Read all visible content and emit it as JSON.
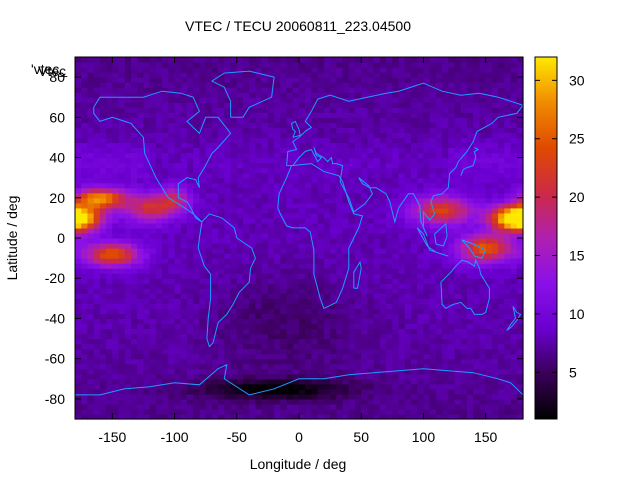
{
  "chart_data": {
    "type": "heatmap",
    "title": "VTEC / TECU 20060811_223.04500",
    "xlabel": "Longitude / deg",
    "ylabel": "Latitude / deg",
    "key_label": "'vtec_",
    "key_overlay_label": "Vtec",
    "xlim": [
      -180,
      180
    ],
    "ylim": [
      -90,
      90
    ],
    "clim": [
      1,
      32
    ],
    "x_ticks": [
      -150,
      -100,
      -50,
      0,
      50,
      100,
      150
    ],
    "y_ticks": [
      -80,
      -60,
      -40,
      -20,
      0,
      20,
      40,
      60,
      80
    ],
    "y_tick_labels": [
      "-80",
      "-60",
      "-40",
      "-20",
      "0",
      "20",
      "40",
      "60",
      "80"
    ],
    "colorbar_ticks": [
      5,
      10,
      15,
      20,
      25,
      30
    ],
    "colormap": [
      "#000000",
      "#3a0058",
      "#6a00d0",
      "#8a10e8",
      "#b020b0",
      "#cc2a46",
      "#e04a00",
      "#f08c00",
      "#ffe800"
    ],
    "grid": false,
    "coastline_color": "#1e9bff",
    "grid_resolution_deg": {
      "lon": 5,
      "lat": 2.5
    },
    "features": [
      {
        "lon": 170,
        "lat": 10,
        "value": 28,
        "sigma_lon": 18,
        "sigma_lat": 6
      },
      {
        "lon": 115,
        "lat": 14,
        "value": 22,
        "sigma_lon": 25,
        "sigma_lat": 7
      },
      {
        "lon": 150,
        "lat": -5,
        "value": 24,
        "sigma_lon": 22,
        "sigma_lat": 7
      },
      {
        "lon": -175,
        "lat": 10,
        "value": 26,
        "sigma_lon": 18,
        "sigma_lat": 7
      },
      {
        "lon": -160,
        "lat": 20,
        "value": 27,
        "sigma_lon": 20,
        "sigma_lat": 5
      },
      {
        "lon": -150,
        "lat": -8,
        "value": 24,
        "sigma_lon": 22,
        "sigma_lat": 6
      },
      {
        "lon": -120,
        "lat": 15,
        "value": 20,
        "sigma_lon": 22,
        "sigma_lat": 7
      },
      {
        "lon": -100,
        "lat": 20,
        "value": 16,
        "sigma_lon": 12,
        "sigma_lat": 6
      },
      {
        "lon": -20,
        "lat": -75,
        "value": 1,
        "sigma_lon": 60,
        "sigma_lat": 5
      }
    ]
  }
}
